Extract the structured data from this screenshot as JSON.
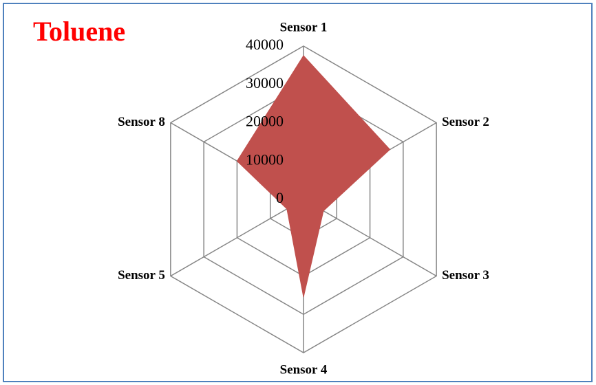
{
  "chart_data": {
    "type": "radar",
    "title": "Toluene",
    "categories": [
      "Sensor 1",
      "Sensor 2",
      "Sensor 3",
      "Sensor 4",
      "Sensor 5",
      "Sensor 8"
    ],
    "values": [
      37500,
      26000,
      6000,
      25500,
      5000,
      20000
    ],
    "color": "#c0504d",
    "rlim": [
      0,
      40000
    ],
    "rticks": [
      0,
      10000,
      20000,
      30000,
      40000
    ],
    "grid": true
  }
}
